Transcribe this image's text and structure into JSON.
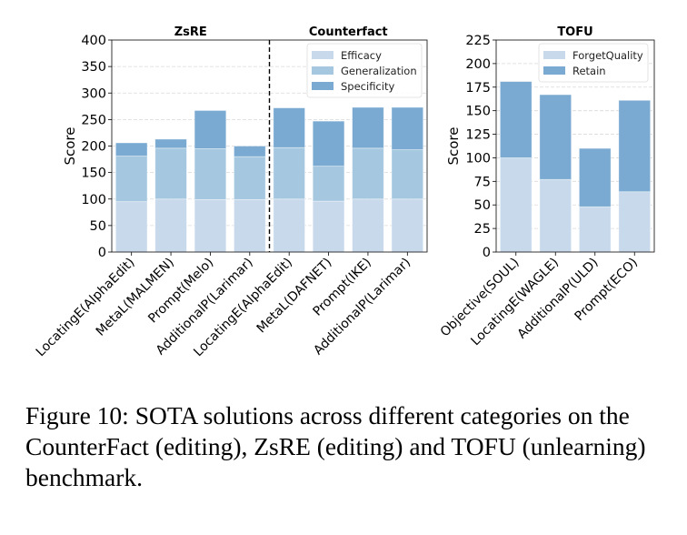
{
  "colors": {
    "efficacy": "#c8d9ec",
    "generalization": "#a5c8e0",
    "specificity": "#7aaad1",
    "forget_quality": "#c8d9ec",
    "retain": "#7aaad1",
    "grid": "#d9d9d9",
    "divider": "#000000"
  },
  "chart_data": [
    {
      "type": "bar",
      "stacked": true,
      "title": "",
      "section_titles": [
        "ZsRE",
        "Counterfact"
      ],
      "section_sizes": [
        4,
        4
      ],
      "xlabel": "",
      "ylabel": "Score",
      "ylim": [
        0,
        400
      ],
      "yticks": [
        0,
        50,
        100,
        150,
        200,
        250,
        300,
        350,
        400
      ],
      "grid": true,
      "legend_position": "top-right",
      "categories": [
        "LocatingE(AlphaEdit)",
        "MetaL(MALMEN)",
        "Prompt(Melo)",
        "AdditionalP(Larimar)",
        "LocatingE(AlphaEdit)",
        "MetaL(DAFNET)",
        "Prompt(IKE)",
        "AdditionalP(Larimar)"
      ],
      "series": [
        {
          "name": "Efficacy",
          "color_key": "efficacy",
          "values": [
            95,
            100,
            99,
            99,
            100,
            96,
            100,
            100
          ]
        },
        {
          "name": "Generalization",
          "color_key": "generalization",
          "values": [
            86,
            96,
            96,
            81,
            97,
            66,
            96,
            93
          ]
        },
        {
          "name": "Specificity",
          "color_key": "specificity",
          "values": [
            25,
            17,
            72,
            20,
            75,
            85,
            77,
            80
          ]
        }
      ]
    },
    {
      "type": "bar",
      "stacked": true,
      "title": "TOFU",
      "xlabel": "",
      "ylabel": "Score",
      "ylim": [
        0,
        225
      ],
      "yticks": [
        0,
        25,
        50,
        75,
        100,
        125,
        150,
        175,
        200,
        225
      ],
      "grid": true,
      "legend_position": "top-right",
      "categories": [
        "Objective(SOUL)",
        "LocatingE(WAGLE)",
        "AdditionalP(ULD)",
        "Prompt(ECO)"
      ],
      "series": [
        {
          "name": "ForgetQuality",
          "color_key": "forget_quality",
          "values": [
            100,
            77,
            48,
            64
          ]
        },
        {
          "name": "Retain",
          "color_key": "retain",
          "values": [
            81,
            90,
            62,
            97
          ]
        }
      ]
    }
  ],
  "caption": "Figure 10: SOTA solutions across different categories on the CounterFact (editing), ZsRE (editing) and TOFU (unlearning) benchmark."
}
